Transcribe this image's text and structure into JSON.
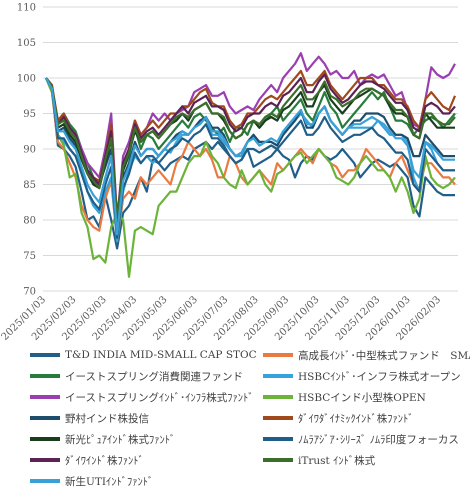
{
  "chart_data": {
    "type": "line",
    "ylim": [
      70,
      110
    ],
    "yticks": [
      "70",
      "75",
      "80",
      "85",
      "90",
      "95",
      "100",
      "105",
      "110"
    ],
    "x_tick_labels": [
      "2025/01/03",
      "2025/02/03",
      "2025/03/03",
      "2025/04/03",
      "2025/05/03",
      "2025/06/03",
      "2025/07/03",
      "2025/08/03",
      "2025/09/03",
      "2025/10/03",
      "2025/11/03",
      "2025/12/03",
      "2026/01/03",
      "2026/02/03"
    ],
    "grid": "horizontal",
    "legend_position": "bottom",
    "series": [
      {
        "name": "T&D INDIA MID-SMALL CAP STOC",
        "color": "#215f88",
        "values": [
          100,
          98.5,
          90.5,
          90,
          89,
          87.5,
          84,
          80,
          80.5,
          79,
          83.5,
          80,
          76,
          81,
          82,
          84,
          86,
          84,
          88.5,
          88,
          87,
          88,
          88.5,
          89,
          88.5,
          90,
          90.5,
          91,
          90,
          91,
          90,
          89,
          88,
          88.5,
          90,
          87.5,
          88,
          88.5,
          89,
          90,
          89,
          88.5,
          86,
          88,
          89,
          88.5,
          90,
          89,
          88.5,
          89,
          90,
          89,
          88,
          86,
          87,
          88,
          88.5,
          88,
          87.5,
          88,
          87,
          86,
          82,
          80.5,
          86,
          85,
          84,
          83.5,
          83.5,
          83.5
        ]
      },
      {
        "name": "高成長ｲﾝﾄﾞ･中型株式ファンド　SMAM",
        "color": "#e97a41",
        "values": [
          100,
          98,
          91,
          90,
          88,
          86,
          82,
          80,
          79,
          78.5,
          83,
          85.5,
          77,
          83,
          84,
          83,
          86,
          85,
          86,
          87,
          86,
          85,
          88,
          89,
          91,
          90,
          89,
          90,
          88.5,
          86,
          86,
          89,
          88,
          86,
          85,
          86,
          87,
          86,
          85,
          88,
          87,
          88,
          89,
          90,
          89,
          88,
          90,
          89,
          88,
          87.5,
          86,
          87,
          87,
          88,
          90,
          89,
          88,
          87,
          86,
          88,
          89,
          87,
          85,
          84.5,
          88,
          88,
          87,
          86,
          86,
          85
        ]
      },
      {
        "name": "イーストスプリング消費関連ファンド",
        "color": "#277c3c",
        "values": [
          100,
          98.5,
          94,
          95,
          93.5,
          92.5,
          90,
          88,
          86,
          85,
          88.5,
          90,
          80,
          87,
          89,
          93,
          90,
          92,
          91.5,
          90,
          91,
          92,
          93,
          94,
          93,
          94.5,
          95,
          94,
          93,
          92,
          93,
          91,
          93,
          93,
          92,
          94,
          93,
          94,
          95,
          96,
          94,
          95,
          96,
          97,
          95,
          94,
          96,
          98,
          96,
          95,
          93,
          94,
          95,
          96,
          97,
          98,
          97,
          98,
          96,
          94,
          94,
          93.5,
          92,
          93,
          94,
          94.5,
          94,
          93,
          94,
          95
        ]
      },
      {
        "name": "HSBCｲﾝﾄﾞ･インフラ株式オープン",
        "color": "#35a3dc",
        "values": [
          100,
          98.5,
          92,
          91,
          90,
          89,
          87,
          84,
          82,
          81,
          84,
          86,
          77,
          84,
          87,
          89,
          88,
          89,
          88,
          89,
          90,
          89.5,
          91,
          92,
          92,
          93,
          94,
          94.5,
          92,
          92,
          91,
          90,
          89,
          89,
          91,
          92,
          90.5,
          91,
          91,
          90.5,
          92,
          93,
          94,
          95,
          94,
          93,
          95,
          96,
          94,
          93,
          92,
          93,
          93,
          93,
          93,
          93,
          94,
          93,
          92,
          92,
          92,
          91,
          86,
          84,
          91,
          90,
          88,
          87,
          87,
          87
        ]
      },
      {
        "name": "イーストスプリングｲﾝﾄﾞ･ｲﾝﾌﾗ株式ﾌｧﾝﾄﾞ",
        "color": "#9a3fb0",
        "values": [
          100,
          99,
          93.5,
          94.5,
          93,
          92,
          90,
          88,
          87,
          86,
          90,
          95,
          80,
          89,
          91,
          94,
          92,
          93,
          95,
          94,
          95,
          94,
          95,
          95.5,
          96,
          98,
          98.5,
          99,
          97.5,
          97.5,
          98,
          96,
          95,
          95.5,
          96,
          95.5,
          97,
          98,
          99,
          98,
          100,
          101,
          102,
          103.5,
          101,
          102,
          103,
          102,
          100.5,
          101,
          100,
          100,
          101,
          99,
          100,
          100.5,
          100,
          100.5,
          99,
          97.5,
          98,
          95.5,
          93.5,
          93,
          97,
          101.5,
          100.5,
          100,
          100.5,
          102
        ]
      },
      {
        "name": "HSBCインド小型株OPEN",
        "color": "#6cb33a",
        "values": [
          100,
          98,
          92,
          90.5,
          86,
          86.5,
          81,
          79,
          74.5,
          75,
          74,
          79,
          81,
          80,
          72,
          78.5,
          79,
          78.5,
          78,
          82,
          83,
          84,
          84,
          86,
          88,
          89,
          89,
          91,
          89,
          88,
          86,
          85,
          84.5,
          87,
          85,
          86,
          87,
          85,
          84,
          86.5,
          87,
          88,
          89,
          89.5,
          88,
          89,
          90,
          89,
          88,
          86,
          85.5,
          85,
          86,
          88,
          89,
          88,
          87,
          87,
          86,
          84,
          86,
          84,
          81,
          83,
          89,
          86,
          85,
          84.5,
          85,
          86
        ]
      },
      {
        "name": "野村インド株投信",
        "color": "#1d4d6b",
        "values": [
          100,
          98.5,
          92.5,
          93,
          91.5,
          90.5,
          89,
          87,
          85.5,
          85,
          87.5,
          90,
          79,
          86,
          88,
          91,
          89,
          90,
          90,
          89,
          90,
          91,
          92,
          92.5,
          92,
          93,
          94,
          94.5,
          93,
          93,
          92,
          90,
          89,
          89.5,
          91,
          92,
          91,
          91,
          91,
          90.5,
          92,
          93,
          94,
          95.5,
          93,
          93,
          95,
          96,
          94,
          93,
          92,
          93,
          94,
          94,
          95,
          95,
          95,
          94.5,
          93,
          92,
          92,
          91.5,
          89,
          89,
          92,
          91,
          90,
          89,
          89,
          89
        ]
      },
      {
        "name": "ﾀﾞｲﾜﾀﾞｲﾅﾐｯｸｲﾝﾄﾞ株ﾌｧﾝﾄﾞ",
        "color": "#a0491c",
        "values": [
          100,
          99,
          94,
          95,
          93,
          92,
          89,
          87,
          86,
          85.5,
          89,
          93.5,
          80,
          88,
          90,
          94,
          92,
          93,
          94,
          93,
          94,
          95,
          95,
          96,
          96,
          97,
          98,
          98.5,
          96.5,
          96,
          96,
          94,
          93,
          93.5,
          95,
          95,
          96,
          97,
          97.5,
          97,
          98,
          99,
          100,
          101,
          99,
          99,
          100,
          101,
          99,
          98,
          97,
          98,
          99,
          100,
          100,
          100,
          99,
          99,
          98,
          97,
          97,
          96,
          94,
          93,
          97,
          98,
          97,
          96,
          95.5,
          97.5
        ]
      },
      {
        "name": "新光ﾋﾟｭｱｲﾝﾄﾞ株式ﾌｧﾝﾄﾞ",
        "color": "#1a3d1e",
        "values": [
          100,
          98.8,
          93,
          93.5,
          92,
          91,
          88.5,
          86.5,
          85,
          84.5,
          88,
          91.5,
          79,
          87,
          89.5,
          92.5,
          91,
          92,
          92.5,
          91.5,
          92.5,
          93.5,
          94,
          95,
          94,
          95.5,
          96,
          96.5,
          95,
          95,
          94,
          92.5,
          91.5,
          92,
          93.5,
          94,
          93,
          94,
          94.5,
          94,
          95.5,
          96,
          97,
          98,
          96,
          96,
          98,
          99,
          97,
          96,
          95,
          96,
          97,
          97.5,
          98,
          98.5,
          98,
          97.5,
          96,
          95,
          95,
          94.5,
          92,
          91.5,
          95,
          94,
          93,
          93,
          93,
          93
        ]
      },
      {
        "name": "ﾉﾑﾗｱｼﾞｱ･ｼﾘｰｽﾞ ﾉﾑﾗ印度フォーカス",
        "color": "#1f5e88",
        "values": [
          100,
          98.5,
          91.5,
          91.5,
          90,
          89,
          86.5,
          84,
          82.5,
          81.5,
          85,
          87.5,
          77.5,
          84.5,
          86.5,
          89.5,
          88,
          89,
          89,
          88,
          89,
          90,
          90.5,
          91.5,
          91,
          92,
          92.5,
          93.5,
          91.5,
          91.5,
          90.5,
          89,
          88,
          88.5,
          90,
          90,
          89.5,
          90,
          90.5,
          90,
          91,
          92,
          93,
          94,
          92,
          92,
          93,
          94.5,
          93,
          92,
          91,
          91.5,
          92,
          92,
          92.5,
          93,
          92,
          91.5,
          90.5,
          89.5,
          89.5,
          88.5,
          85,
          84,
          90,
          89,
          88,
          87,
          87,
          87
        ]
      },
      {
        "name": "ﾀﾞｲﾜｲﾝﾄﾞ株ﾌｧﾝﾄﾞ",
        "color": "#5c2155",
        "values": [
          100,
          98.8,
          93.5,
          94.5,
          93,
          92,
          89.5,
          87,
          86,
          85,
          89,
          92.5,
          80,
          88,
          90,
          93.5,
          91.5,
          92.5,
          93,
          92,
          93,
          94,
          95,
          96,
          95,
          96.5,
          97,
          97.5,
          96,
          96,
          95.5,
          93.5,
          92.5,
          93,
          94.5,
          95,
          95,
          96,
          96.5,
          96,
          97.5,
          98,
          99,
          100,
          98,
          98,
          99.5,
          100.5,
          98.5,
          97.5,
          96.5,
          97,
          98,
          99,
          99.5,
          99.5,
          99,
          98.5,
          97.5,
          96.5,
          96.5,
          95.5,
          93,
          92.5,
          96,
          96.5,
          96,
          95,
          95,
          96
        ]
      },
      {
        "name": "iTrust ｲﾝﾄﾞ株式",
        "color": "#3b6e2a",
        "values": [
          100,
          98.8,
          93.5,
          94,
          92.5,
          91.5,
          89,
          86.5,
          85.5,
          84.5,
          88.5,
          91.5,
          80,
          87.5,
          89.5,
          93,
          91,
          92,
          92.5,
          91.5,
          92.5,
          93.5,
          94.5,
          95,
          94.5,
          95.5,
          96,
          96.5,
          95,
          95,
          94.5,
          92.5,
          91.5,
          92,
          93.5,
          94,
          93.5,
          94.5,
          95,
          94.5,
          96,
          97,
          98,
          99,
          97,
          97,
          98,
          99.5,
          97.5,
          97,
          96,
          96.5,
          97,
          98,
          98.5,
          98.5,
          98,
          97.5,
          96.5,
          95.5,
          95.5,
          94.5,
          92,
          91.5,
          95,
          95,
          94,
          93.5,
          93.5,
          94.5
        ]
      },
      {
        "name": "新生UTIｲﾝﾄﾞﾌｧﾝﾄﾞ",
        "color": "#3aa0d8",
        "values": [
          100,
          98.5,
          92.5,
          92.5,
          91,
          90,
          87.5,
          85,
          83.5,
          82.5,
          86,
          89,
          78,
          85.5,
          87.5,
          90.5,
          89,
          90,
          90,
          89,
          90,
          91,
          91.5,
          92.5,
          92,
          93,
          93.5,
          94.5,
          92.5,
          92.5,
          91.5,
          90,
          89,
          89.5,
          91,
          91.5,
          90.5,
          91,
          91.5,
          91,
          92.5,
          93.5,
          94.5,
          95.5,
          93.5,
          93.5,
          95,
          96,
          94,
          93,
          92,
          93,
          93.5,
          93.5,
          94,
          94.5,
          94,
          93.5,
          92.5,
          91.5,
          91.5,
          90.5,
          87,
          86,
          91,
          90.5,
          89.5,
          88.5,
          88.5,
          88.5
        ]
      }
    ]
  }
}
